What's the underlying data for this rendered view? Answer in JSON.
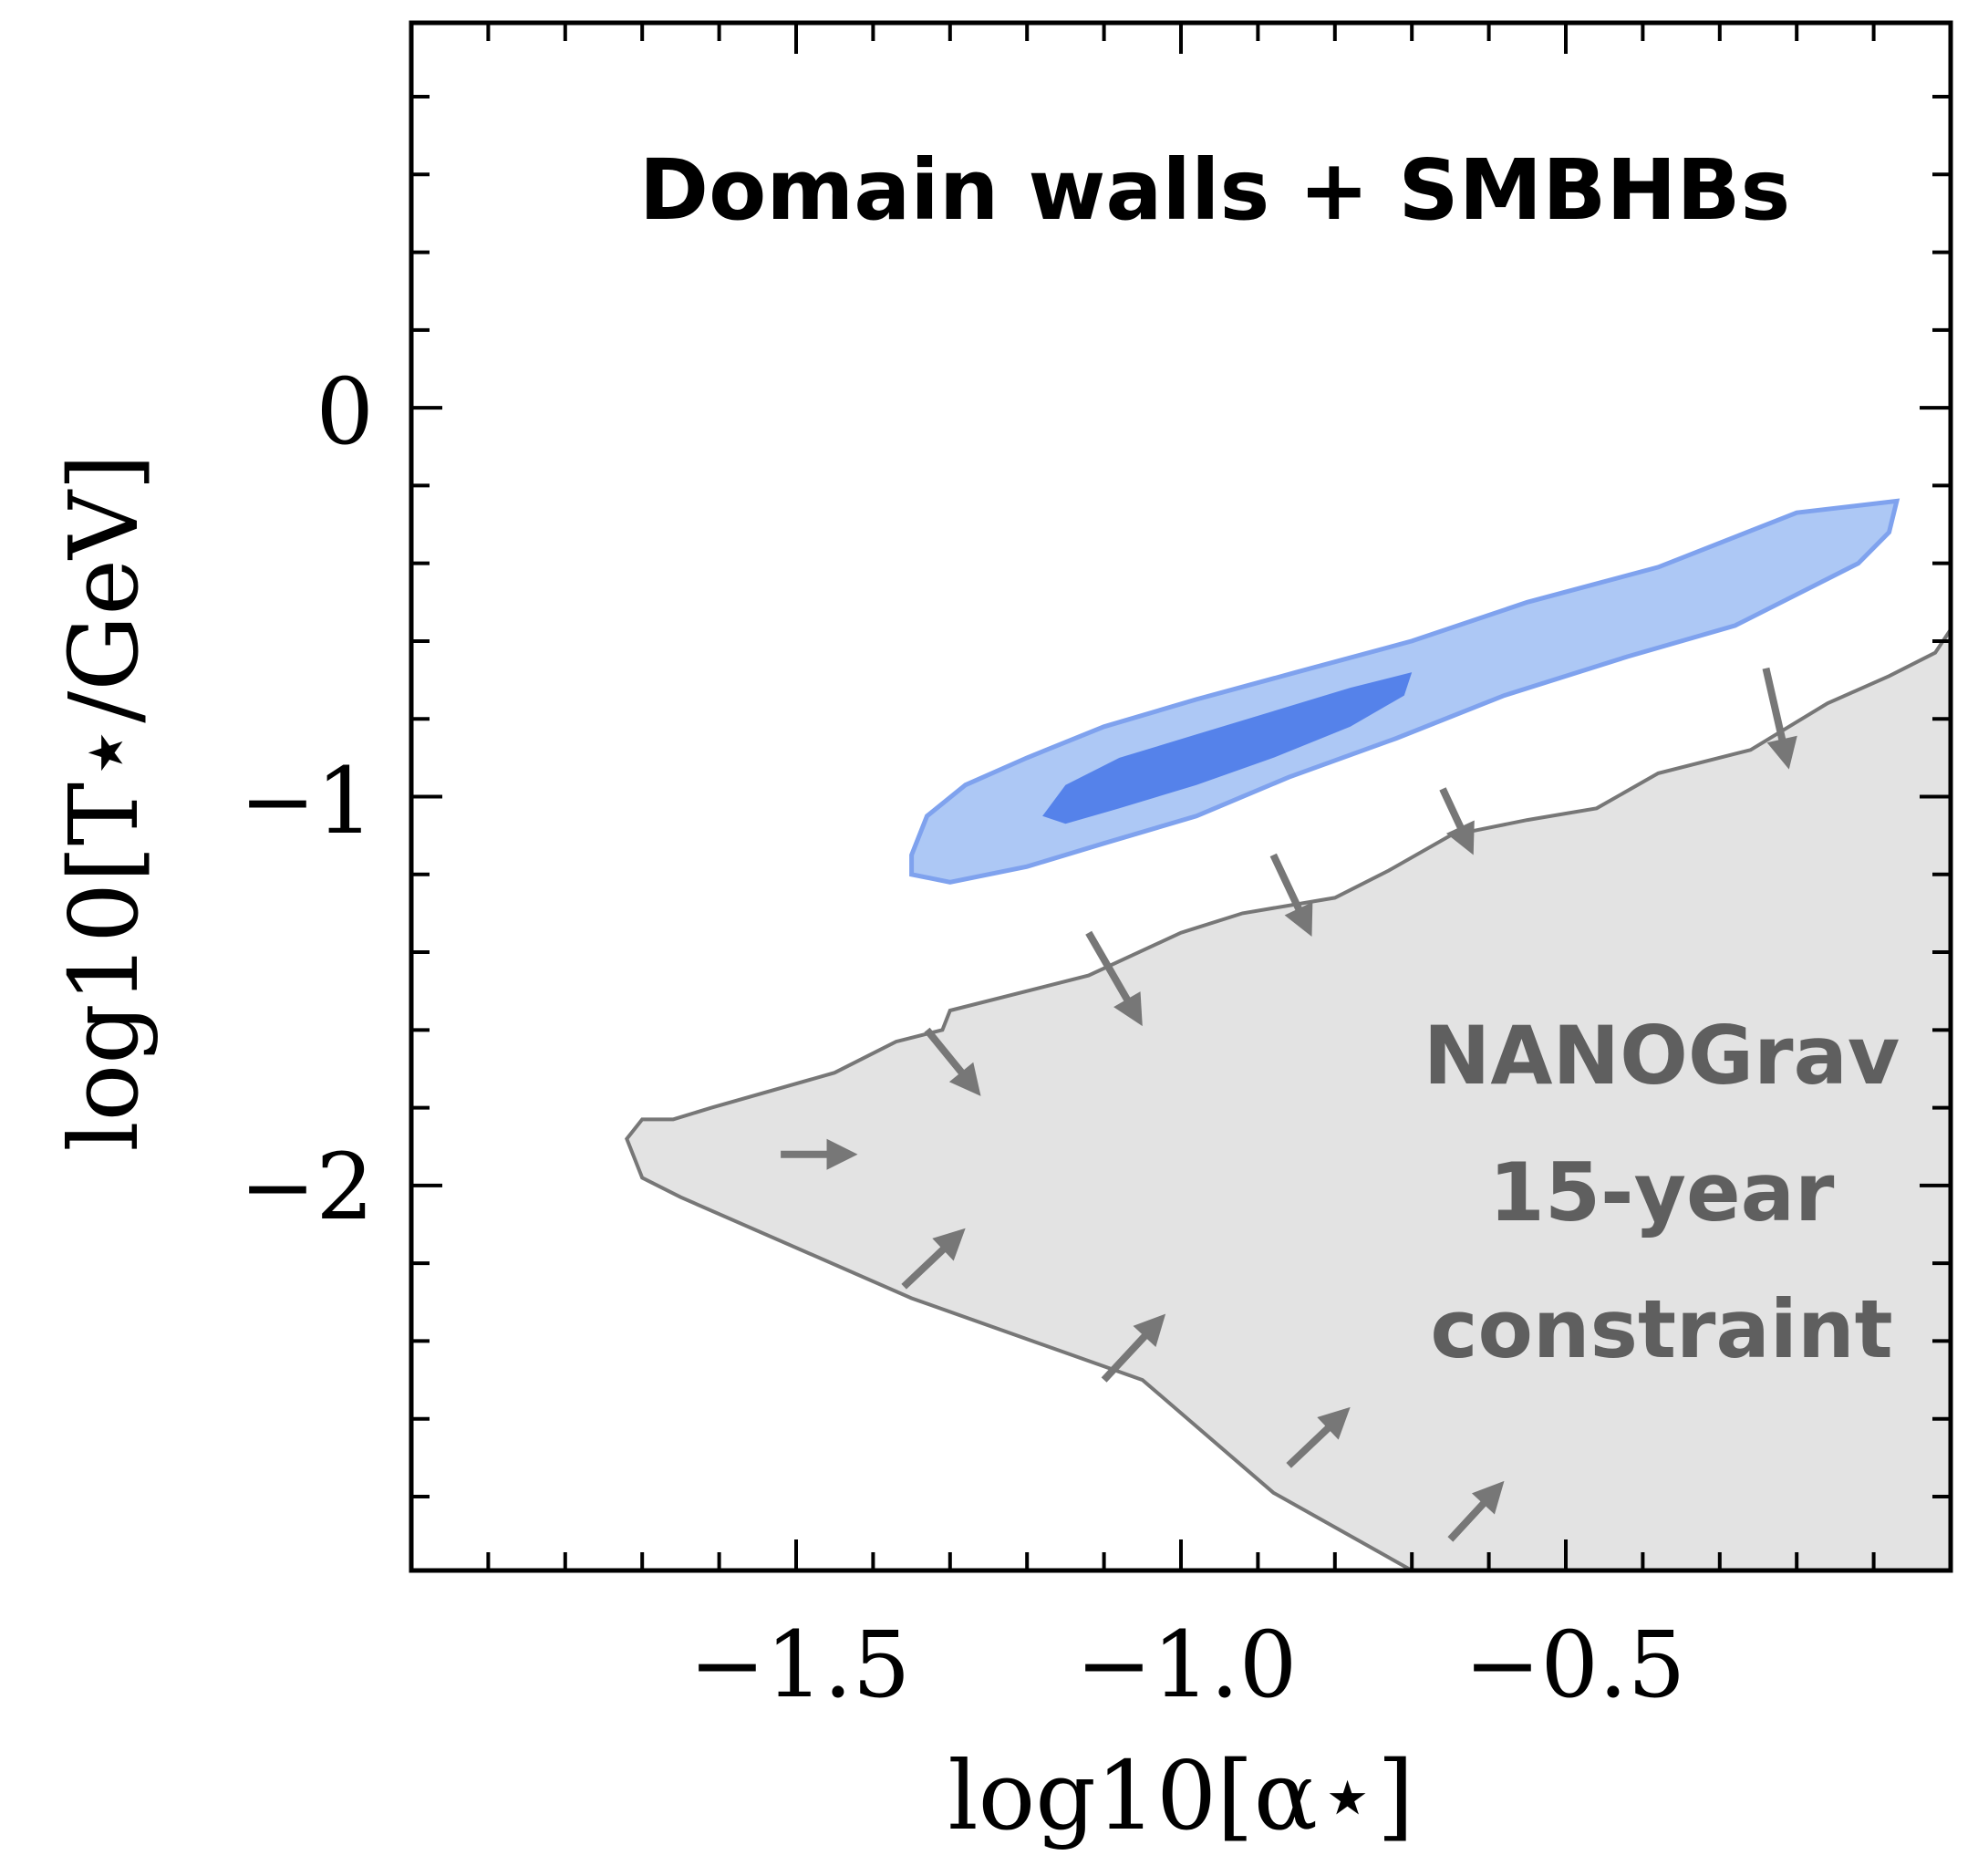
{
  "chart_data": {
    "type": "contour",
    "title": "Domain walls + SMBHBs",
    "xlabel": "log10[α⋆]",
    "ylabel": "log10[T⋆/GeV]",
    "xlim": [
      -2.0,
      0.0
    ],
    "ylim": [
      -2.99,
      0.99
    ],
    "x_ticks": [
      -1.5,
      -1.0,
      -0.5
    ],
    "x_tick_labels": [
      "−1.5",
      "−1.0",
      "−0.5"
    ],
    "y_ticks": [
      -2,
      -1,
      0
    ],
    "y_tick_labels": [
      "−2",
      "−1",
      "0"
    ],
    "colors": {
      "contour_outer": "#adc8f5",
      "contour_outer_edge": "#7fa2ee",
      "contour_inner": "#5582ea",
      "constraint_fill": "#e3e3e3",
      "constraint_edge": "#777777",
      "arrow": "#777777"
    },
    "series": [
      {
        "name": "posterior outer contour",
        "x": [
          -1.35,
          -1.33,
          -1.28,
          -1.2,
          -1.1,
          -0.98,
          -0.85,
          -0.7,
          -0.55,
          -0.38,
          -0.2,
          -0.07,
          -0.08,
          -0.12,
          -0.18,
          -0.28,
          -0.42,
          -0.58,
          -0.72,
          -0.86,
          -0.98,
          -1.1,
          -1.2,
          -1.3,
          -1.35
        ],
        "y": [
          -1.15,
          -1.05,
          -0.97,
          -0.9,
          -0.82,
          -0.75,
          -0.68,
          -0.6,
          -0.5,
          -0.41,
          -0.27,
          -0.24,
          -0.32,
          -0.4,
          -0.46,
          -0.56,
          -0.64,
          -0.74,
          -0.85,
          -0.95,
          -1.05,
          -1.12,
          -1.18,
          -1.22,
          -1.2
        ]
      },
      {
        "name": "posterior inner contour",
        "x": [
          -1.18,
          -1.15,
          -1.08,
          -0.98,
          -0.88,
          -0.78,
          -0.7,
          -0.71,
          -0.78,
          -0.88,
          -0.98,
          -1.08,
          -1.15,
          -1.18
        ],
        "y": [
          -1.05,
          -0.97,
          -0.9,
          -0.84,
          -0.78,
          -0.72,
          -0.68,
          -0.74,
          -0.82,
          -0.9,
          -0.97,
          -1.03,
          -1.07,
          -1.05
        ]
      },
      {
        "name": "NANOGrav 15-year constraint",
        "x": [
          -1.66,
          -1.61,
          -1.45,
          -1.37,
          -1.31,
          -1.3,
          -1.12,
          -1.0,
          -0.92,
          -0.8,
          -0.73,
          -0.65,
          -0.55,
          -0.46,
          -0.38,
          -0.26,
          -0.16,
          -0.08,
          -0.02,
          0.0,
          0.0,
          -0.7,
          -0.88,
          -1.05,
          -1.35,
          -1.65,
          -1.7,
          -1.72,
          -1.7
        ],
        "y": [
          -1.83,
          -1.8,
          -1.71,
          -1.63,
          -1.6,
          -1.55,
          -1.46,
          -1.35,
          -1.3,
          -1.26,
          -1.19,
          -1.1,
          -1.06,
          -1.03,
          -0.94,
          -0.88,
          -0.76,
          -0.69,
          -0.63,
          -0.57,
          -2.99,
          -2.99,
          -2.79,
          -2.5,
          -2.29,
          -2.03,
          -1.98,
          -1.88,
          -1.83
        ]
      }
    ],
    "arrows": [
      {
        "x1": -1.52,
        "y1": -1.92,
        "x2": -1.42,
        "y2": -1.92
      },
      {
        "x1": -1.36,
        "y1": -2.26,
        "x2": -1.28,
        "y2": -2.11
      },
      {
        "x1": -1.33,
        "y1": -1.6,
        "x2": -1.26,
        "y2": -1.77
      },
      {
        "x1": -1.1,
        "y1": -2.5,
        "x2": -1.02,
        "y2": -2.33
      },
      {
        "x1": -1.12,
        "y1": -1.35,
        "x2": -1.05,
        "y2": -1.59
      },
      {
        "x1": -0.86,
        "y1": -2.72,
        "x2": -0.78,
        "y2": -2.57
      },
      {
        "x1": -0.88,
        "y1": -1.15,
        "x2": -0.83,
        "y2": -1.36
      },
      {
        "x1": -0.65,
        "y1": -2.91,
        "x2": -0.58,
        "y2": -2.76
      },
      {
        "x1": -0.66,
        "y1": -0.98,
        "x2": -0.62,
        "y2": -1.15
      },
      {
        "x1": -0.24,
        "y1": -0.67,
        "x2": -0.21,
        "y2": -0.93
      }
    ],
    "annotations": {
      "constraint_line1": "NANOGrav",
      "constraint_line2": "15-year",
      "constraint_line3": "constraint"
    }
  }
}
